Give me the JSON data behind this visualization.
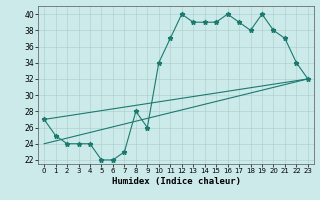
{
  "xlabel": "Humidex (Indice chaleur)",
  "ylabel": "",
  "background_color": "#cceaea",
  "line_color": "#1a7a6e",
  "xlim": [
    -0.5,
    23.5
  ],
  "ylim": [
    21.5,
    41
  ],
  "xticks": [
    0,
    1,
    2,
    3,
    4,
    5,
    6,
    7,
    8,
    9,
    10,
    11,
    12,
    13,
    14,
    15,
    16,
    17,
    18,
    19,
    20,
    21,
    22,
    23
  ],
  "yticks": [
    22,
    24,
    26,
    28,
    30,
    32,
    34,
    36,
    38,
    40
  ],
  "line1_x": [
    0,
    1,
    2,
    3,
    4,
    5,
    6,
    7,
    8,
    9,
    10,
    11,
    12,
    13,
    14,
    15,
    16,
    17,
    18,
    19,
    20,
    21,
    22,
    23
  ],
  "line1_y": [
    27,
    25,
    24,
    24,
    24,
    22,
    22,
    23,
    28,
    26,
    34,
    37,
    40,
    39,
    39,
    39,
    40,
    39,
    38,
    40,
    38,
    37,
    34,
    32
  ],
  "line2_x": [
    0,
    23
  ],
  "line2_y": [
    24,
    32
  ],
  "line3_x": [
    0,
    23
  ],
  "line3_y": [
    27,
    32
  ],
  "figsize": [
    3.2,
    2.0
  ],
  "dpi": 100
}
